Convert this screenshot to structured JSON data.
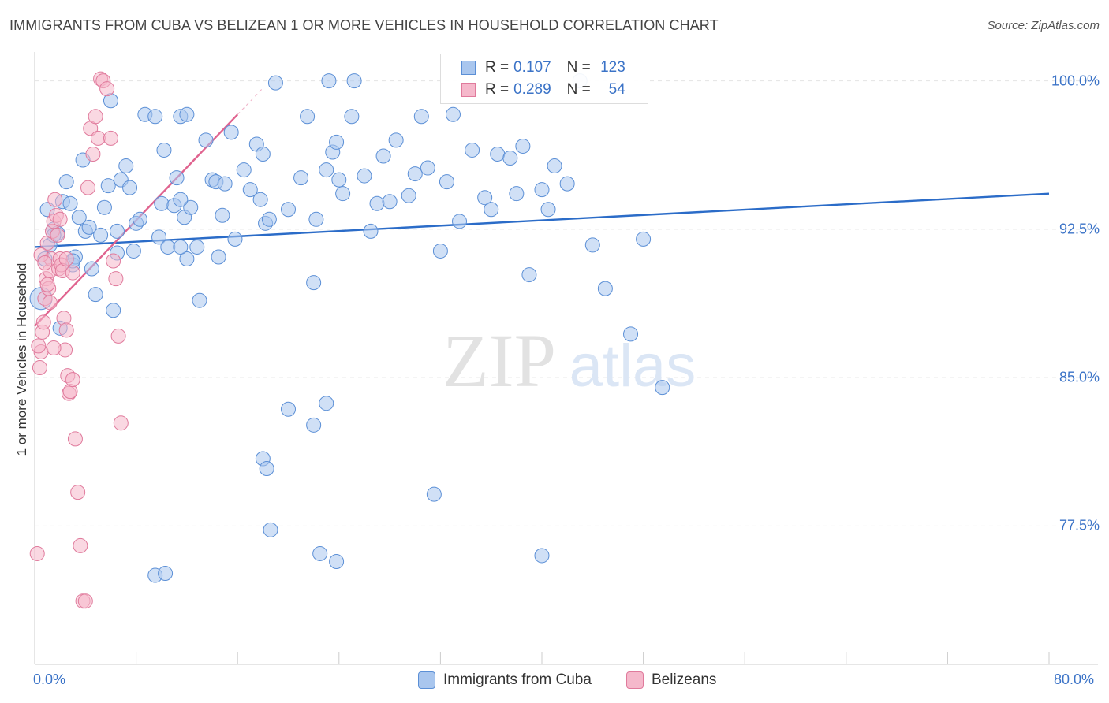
{
  "title": "IMMIGRANTS FROM CUBA VS BELIZEAN 1 OR MORE VEHICLES IN HOUSEHOLD CORRELATION CHART",
  "source": "Source: ZipAtlas.com",
  "watermark": {
    "zip": "ZIP",
    "atlas": "atlas"
  },
  "colors": {
    "blue_fill": "#a9c6ee",
    "blue_stroke": "#5b8fd6",
    "blue_line": "#2b6cc8",
    "pink_fill": "#f5b8cb",
    "pink_stroke": "#e07a9c",
    "pink_line": "#e0638f",
    "tick_text": "#3b73c7",
    "grid": "#e4e4e4"
  },
  "legend": {
    "rows": [
      {
        "r_label": "R =",
        "r_value": "0.107",
        "n_label": "N =",
        "n_value": "123"
      },
      {
        "r_label": "R =",
        "r_value": "0.289",
        "n_label": "N =",
        "n_value": "54"
      }
    ]
  },
  "chart_data": {
    "type": "scatter",
    "xlabel": "",
    "ylabel": "1 or more Vehicles in Household",
    "xlim": [
      0,
      80
    ],
    "ylim": [
      70.5,
      101.3
    ],
    "x_tick_labels": [
      "0.0%",
      "80.0%"
    ],
    "y_ticks": [
      77.5,
      85.0,
      92.5,
      100.0
    ],
    "y_tick_labels": [
      "77.5%",
      "85.0%",
      "92.5%",
      "100.0%"
    ],
    "grid": "horizontal dashed",
    "legend_position": "bottom",
    "series": [
      {
        "name": "Immigrants from Cuba",
        "regression": {
          "x": [
            0,
            80
          ],
          "y": [
            91.6,
            94.3
          ]
        },
        "points": [
          [
            0.5,
            89.0
          ],
          [
            0.8,
            91.0
          ],
          [
            1.0,
            93.5
          ],
          [
            1.2,
            91.7
          ],
          [
            1.5,
            92.5
          ],
          [
            1.8,
            92.3
          ],
          [
            2.0,
            87.5
          ],
          [
            2.2,
            93.9
          ],
          [
            2.5,
            94.9
          ],
          [
            2.8,
            93.8
          ],
          [
            3.0,
            90.7
          ],
          [
            3.2,
            91.1
          ],
          [
            3.5,
            93.1
          ],
          [
            3.8,
            96.0
          ],
          [
            4.0,
            92.4
          ],
          [
            4.3,
            92.6
          ],
          [
            4.5,
            90.5
          ],
          [
            4.8,
            89.2
          ],
          [
            5.2,
            92.2
          ],
          [
            5.5,
            93.6
          ],
          [
            5.8,
            94.7
          ],
          [
            6.0,
            99.0
          ],
          [
            6.2,
            88.4
          ],
          [
            6.5,
            91.3
          ],
          [
            6.8,
            95.0
          ],
          [
            7.2,
            95.7
          ],
          [
            7.5,
            94.6
          ],
          [
            7.8,
            91.4
          ],
          [
            8.0,
            92.8
          ],
          [
            8.3,
            93.0
          ],
          [
            8.7,
            98.3
          ],
          [
            9.5,
            98.2
          ],
          [
            9.8,
            92.1
          ],
          [
            10.0,
            93.8
          ],
          [
            10.2,
            96.5
          ],
          [
            10.5,
            91.6
          ],
          [
            11.0,
            93.7
          ],
          [
            11.2,
            95.1
          ],
          [
            11.5,
            98.2
          ],
          [
            11.8,
            93.1
          ],
          [
            12.0,
            91.0
          ],
          [
            12.3,
            93.6
          ],
          [
            12.8,
            91.6
          ],
          [
            13.0,
            88.9
          ],
          [
            13.5,
            97.0
          ],
          [
            14.0,
            95.0
          ],
          [
            14.3,
            94.9
          ],
          [
            14.5,
            91.1
          ],
          [
            14.8,
            93.2
          ],
          [
            15.0,
            94.8
          ],
          [
            15.5,
            97.4
          ],
          [
            15.8,
            92.0
          ],
          [
            16.5,
            95.5
          ],
          [
            17.0,
            94.5
          ],
          [
            17.5,
            96.8
          ],
          [
            17.8,
            94.0
          ],
          [
            18.0,
            96.3
          ],
          [
            18.2,
            92.8
          ],
          [
            18.5,
            93.0
          ],
          [
            19.0,
            99.9
          ],
          [
            20.0,
            93.5
          ],
          [
            21.0,
            95.1
          ],
          [
            21.5,
            98.2
          ],
          [
            22.0,
            89.8
          ],
          [
            22.2,
            93.0
          ],
          [
            23.0,
            95.5
          ],
          [
            23.2,
            100.0
          ],
          [
            23.5,
            96.4
          ],
          [
            23.8,
            96.9
          ],
          [
            24.0,
            95.0
          ],
          [
            24.3,
            94.3
          ],
          [
            25.0,
            98.2
          ],
          [
            25.2,
            100.0
          ],
          [
            26.0,
            95.2
          ],
          [
            26.5,
            92.4
          ],
          [
            27.0,
            93.8
          ],
          [
            27.5,
            96.2
          ],
          [
            28.0,
            93.9
          ],
          [
            28.5,
            97.0
          ],
          [
            29.5,
            94.2
          ],
          [
            30.0,
            95.3
          ],
          [
            30.5,
            98.2
          ],
          [
            31.0,
            95.6
          ],
          [
            32.0,
            91.4
          ],
          [
            32.5,
            94.9
          ],
          [
            33.0,
            98.3
          ],
          [
            33.5,
            92.9
          ],
          [
            34.5,
            96.5
          ],
          [
            35.5,
            94.1
          ],
          [
            36.0,
            93.5
          ],
          [
            36.5,
            96.3
          ],
          [
            37.5,
            96.1
          ],
          [
            38.0,
            94.3
          ],
          [
            38.5,
            96.7
          ],
          [
            39.0,
            90.2
          ],
          [
            40.0,
            94.5
          ],
          [
            40.5,
            93.5
          ],
          [
            41.0,
            95.7
          ],
          [
            42.0,
            94.8
          ],
          [
            43.0,
            100.0
          ],
          [
            44.0,
            91.7
          ],
          [
            45.0,
            89.5
          ],
          [
            47.0,
            87.2
          ],
          [
            48.0,
            92.0
          ],
          [
            49.5,
            84.5
          ],
          [
            20.0,
            83.4
          ],
          [
            22.0,
            82.6
          ],
          [
            23.0,
            83.7
          ],
          [
            18.0,
            80.9
          ],
          [
            18.3,
            80.4
          ],
          [
            18.6,
            77.3
          ],
          [
            22.5,
            76.1
          ],
          [
            23.8,
            75.7
          ],
          [
            31.5,
            79.1
          ],
          [
            40.0,
            76.0
          ],
          [
            9.5,
            75.0
          ],
          [
            10.3,
            75.1
          ],
          [
            11.5,
            91.6
          ],
          [
            11.5,
            94.0
          ],
          [
            1.5,
            92.2
          ],
          [
            3.0,
            90.9
          ],
          [
            6.5,
            92.4
          ],
          [
            12.0,
            98.3
          ]
        ]
      },
      {
        "name": "Belizeans",
        "regression": {
          "x": [
            0,
            16.0
          ],
          "y": [
            87.6,
            98.3
          ]
        },
        "points": [
          [
            0.2,
            76.1
          ],
          [
            0.4,
            85.5
          ],
          [
            0.5,
            86.3
          ],
          [
            0.6,
            87.3
          ],
          [
            0.7,
            87.8
          ],
          [
            0.8,
            89.0
          ],
          [
            0.9,
            90.0
          ],
          [
            1.0,
            91.8
          ],
          [
            1.1,
            89.5
          ],
          [
            1.2,
            90.4
          ],
          [
            1.3,
            91.0
          ],
          [
            1.4,
            92.4
          ],
          [
            1.5,
            92.9
          ],
          [
            1.6,
            94.0
          ],
          [
            1.7,
            93.2
          ],
          [
            1.8,
            92.2
          ],
          [
            1.9,
            90.5
          ],
          [
            2.0,
            91.0
          ],
          [
            2.1,
            90.7
          ],
          [
            2.2,
            90.4
          ],
          [
            2.3,
            88.0
          ],
          [
            2.4,
            86.4
          ],
          [
            2.5,
            87.4
          ],
          [
            2.6,
            85.1
          ],
          [
            2.7,
            84.2
          ],
          [
            2.8,
            84.3
          ],
          [
            3.0,
            84.9
          ],
          [
            3.2,
            81.9
          ],
          [
            3.4,
            79.2
          ],
          [
            3.6,
            76.5
          ],
          [
            3.8,
            73.7
          ],
          [
            4.0,
            73.7
          ],
          [
            4.2,
            94.6
          ],
          [
            4.4,
            97.6
          ],
          [
            4.6,
            96.3
          ],
          [
            4.8,
            98.2
          ],
          [
            5.0,
            97.1
          ],
          [
            5.2,
            100.1
          ],
          [
            5.4,
            100.0
          ],
          [
            5.7,
            99.6
          ],
          [
            6.0,
            97.1
          ],
          [
            6.2,
            90.9
          ],
          [
            6.4,
            90.0
          ],
          [
            6.6,
            87.1
          ],
          [
            6.8,
            82.7
          ],
          [
            0.3,
            86.6
          ],
          [
            0.5,
            91.2
          ],
          [
            0.8,
            90.8
          ],
          [
            1.0,
            89.7
          ],
          [
            1.2,
            88.8
          ],
          [
            1.5,
            86.5
          ],
          [
            2.0,
            93.0
          ],
          [
            2.5,
            91.0
          ],
          [
            3.0,
            90.3
          ]
        ]
      }
    ]
  }
}
